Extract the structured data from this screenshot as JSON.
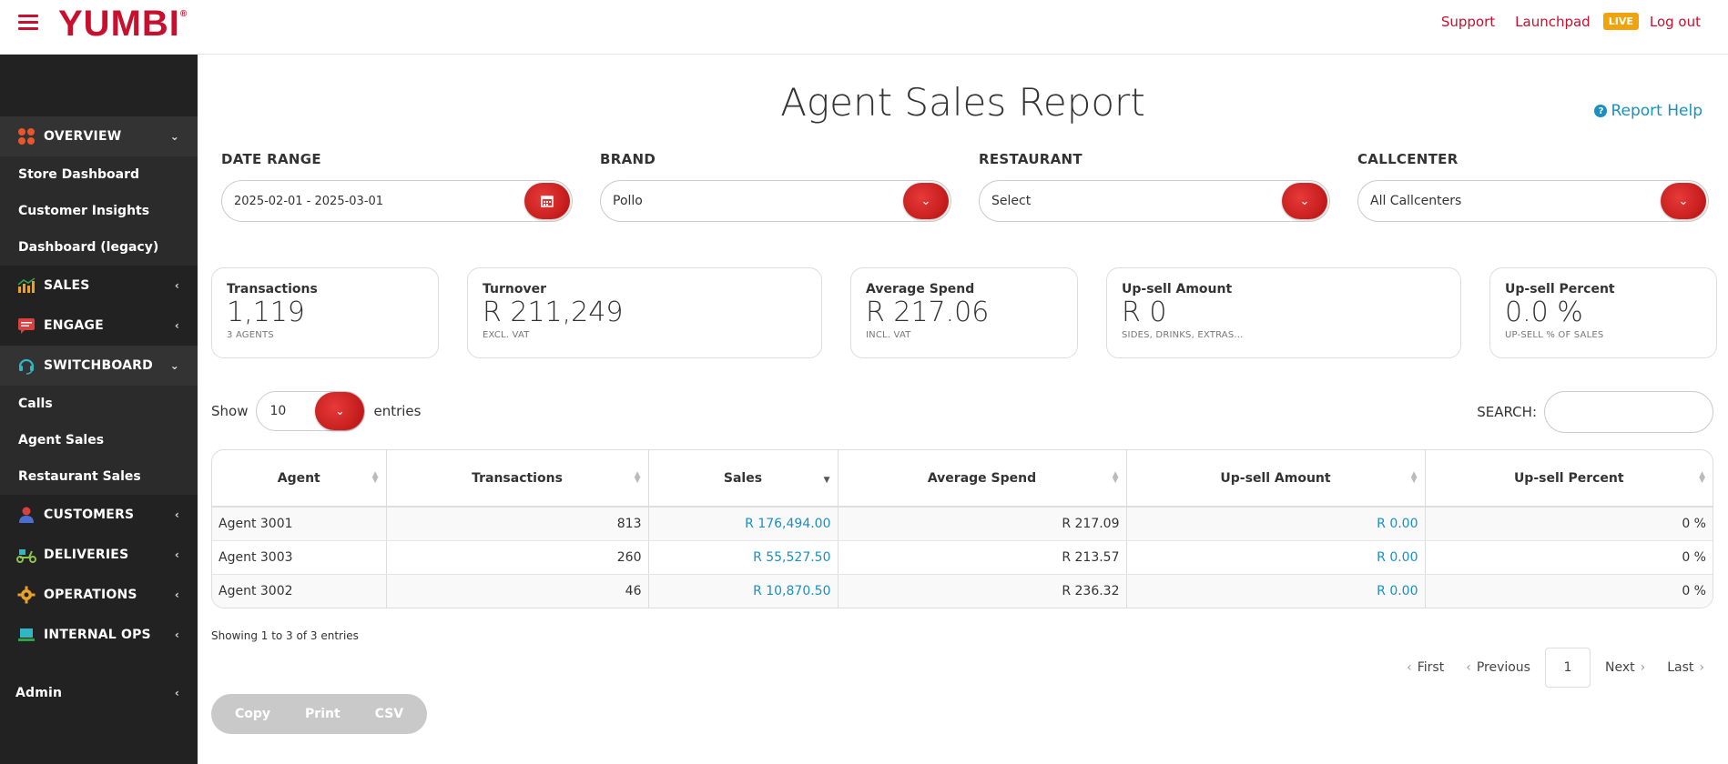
{
  "header": {
    "logo": "YUMBI",
    "logo_mark": "®",
    "links": [
      "Support",
      "Launchpad"
    ],
    "live_badge": "LIVE",
    "logout": "Log out"
  },
  "sidebar": {
    "overview": "OVERVIEW",
    "overview_items": [
      "Store Dashboard",
      "Customer Insights",
      "Dashboard (legacy)"
    ],
    "sales": "SALES",
    "engage": "ENGAGE",
    "switchboard": "SWITCHBOARD",
    "switchboard_items": [
      "Calls",
      "Agent Sales",
      "Restaurant Sales"
    ],
    "customers": "CUSTOMERS",
    "deliveries": "DELIVERIES",
    "operations": "OPERATIONS",
    "internal_ops": "INTERNAL OPS",
    "admin": "Admin"
  },
  "page": {
    "title": "Agent Sales Report",
    "help": "Report Help"
  },
  "filters": {
    "date_range_label": "DATE RANGE",
    "date_range_value": "2025-02-01 - 2025-03-01",
    "brand_label": "BRAND",
    "brand_value": "Pollo",
    "restaurant_label": "RESTAURANT",
    "restaurant_value": "Select",
    "callcenter_label": "CALLCENTER",
    "callcenter_value": "All Callcenters"
  },
  "cards": [
    {
      "title": "Transactions",
      "value": "1,119",
      "sub": "3 AGENTS"
    },
    {
      "title": "Turnover",
      "value": "R 211,249",
      "sub": "EXCL. VAT"
    },
    {
      "title": "Average Spend",
      "value": "R 217.06",
      "sub": "INCL. VAT"
    },
    {
      "title": "Up-sell Amount",
      "value": "R 0",
      "sub": "SIDES, DRINKS, EXTRAS..."
    },
    {
      "title": "Up-sell Percent",
      "value": "0.0 %",
      "sub": "UP-SELL % OF SALES"
    }
  ],
  "table_controls": {
    "show": "Show",
    "length_value": "10",
    "entries": "entries",
    "search_label": "SEARCH:"
  },
  "table": {
    "headers": [
      "Agent",
      "Transactions",
      "Sales",
      "Average Spend",
      "Up-sell Amount",
      "Up-sell Percent"
    ],
    "rows": [
      [
        "Agent 3001",
        "813",
        "R 176,494.00",
        "R 217.09",
        "R 0.00",
        "0 %"
      ],
      [
        "Agent 3003",
        "260",
        "R 55,527.50",
        "R 213.57",
        "R 0.00",
        "0 %"
      ],
      [
        "Agent 3002",
        "46",
        "R 10,870.50",
        "R 236.32",
        "R 0.00",
        "0 %"
      ]
    ]
  },
  "info": "Showing 1 to 3 of 3 entries",
  "pager": {
    "first": "First",
    "previous": "Previous",
    "current": "1",
    "next": "Next",
    "last": "Last"
  },
  "export": [
    "Copy",
    "Print",
    "CSV"
  ],
  "colors": {
    "brand_red": "#c8102e",
    "link_blue": "#1a8fc2",
    "live_orange": "#f0a30a",
    "sidebar_bg": "#222222"
  }
}
